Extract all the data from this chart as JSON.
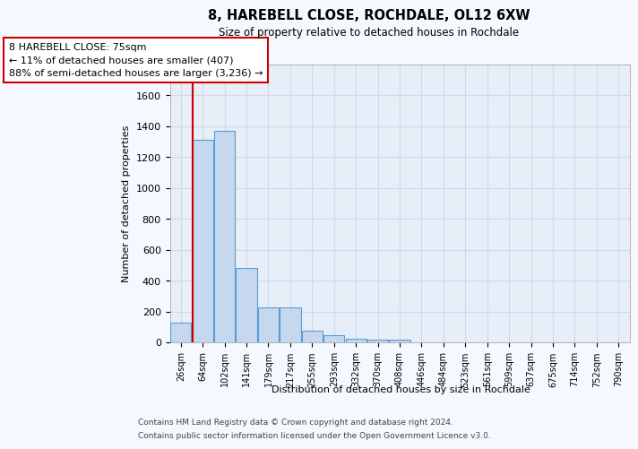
{
  "title_line1": "8, HAREBELL CLOSE, ROCHDALE, OL12 6XW",
  "title_line2": "Size of property relative to detached houses in Rochdale",
  "xlabel": "Distribution of detached houses by size in Rochdale",
  "ylabel": "Number of detached properties",
  "categories": [
    "26sqm",
    "64sqm",
    "102sqm",
    "141sqm",
    "179sqm",
    "217sqm",
    "255sqm",
    "293sqm",
    "332sqm",
    "370sqm",
    "408sqm",
    "446sqm",
    "484sqm",
    "523sqm",
    "561sqm",
    "599sqm",
    "637sqm",
    "675sqm",
    "714sqm",
    "752sqm",
    "790sqm"
  ],
  "values": [
    130,
    1310,
    1370,
    480,
    225,
    225,
    75,
    45,
    25,
    20,
    20,
    0,
    0,
    0,
    0,
    0,
    0,
    0,
    0,
    0,
    0
  ],
  "bar_color": "#c5d8ee",
  "bar_edge_color": "#5b9bd5",
  "vline_x": 1,
  "vline_color": "#cc0000",
  "annotation_text": "8 HAREBELL CLOSE: 75sqm\n← 11% of detached houses are smaller (407)\n88% of semi-detached houses are larger (3,236) →",
  "annotation_box_color": "white",
  "annotation_box_edge_color": "#cc0000",
  "ylim": [
    0,
    1800
  ],
  "yticks": [
    0,
    200,
    400,
    600,
    800,
    1000,
    1200,
    1400,
    1600,
    1800
  ],
  "footer_line1": "Contains HM Land Registry data © Crown copyright and database right 2024.",
  "footer_line2": "Contains public sector information licensed under the Open Government Licence v3.0.",
  "fig_bg_color": "#f5f8ff",
  "plot_bg_color": "#e8eef8"
}
